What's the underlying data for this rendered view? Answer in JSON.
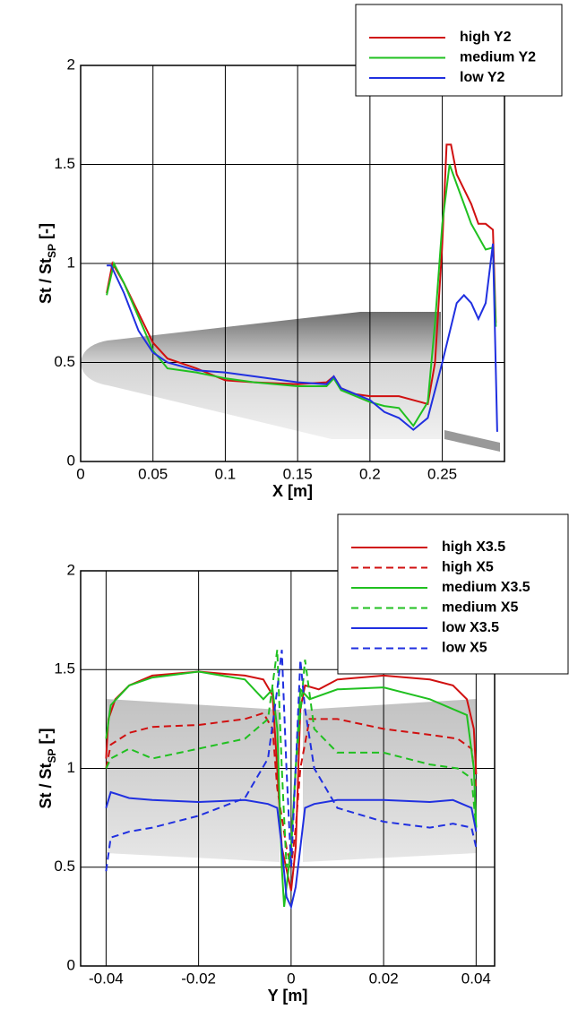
{
  "chart_data": [
    {
      "type": "line",
      "xlabel": "X [m]",
      "ylabel": {
        "main": "St / St",
        "sub": "SP",
        "unit": "[-]"
      },
      "xlim": [
        0,
        0.293
      ],
      "ylim": [
        0,
        2
      ],
      "xticks": [
        0,
        0.05,
        0.1,
        0.15,
        0.2,
        0.25
      ],
      "yticks": [
        0,
        0.5,
        1,
        1.5,
        2
      ],
      "grid": true,
      "legend": "upper right",
      "series": [
        {
          "name": "high Y2",
          "color": "#d01010",
          "dash": false,
          "x": [
            0.018,
            0.022,
            0.03,
            0.04,
            0.05,
            0.06,
            0.08,
            0.1,
            0.12,
            0.15,
            0.17,
            0.175,
            0.18,
            0.19,
            0.2,
            0.22,
            0.235,
            0.24,
            0.245,
            0.25,
            0.253,
            0.256,
            0.26,
            0.27,
            0.275,
            0.28,
            0.285,
            0.287
          ],
          "values": [
            0.85,
            1.0,
            0.9,
            0.75,
            0.6,
            0.52,
            0.47,
            0.41,
            0.4,
            0.39,
            0.4,
            0.43,
            0.37,
            0.34,
            0.33,
            0.33,
            0.3,
            0.29,
            0.5,
            1.1,
            1.6,
            1.6,
            1.45,
            1.3,
            1.2,
            1.2,
            1.17,
            0.7
          ]
        },
        {
          "name": "medium Y2",
          "color": "#20c020",
          "dash": false,
          "x": [
            0.018,
            0.023,
            0.03,
            0.04,
            0.05,
            0.06,
            0.08,
            0.1,
            0.12,
            0.15,
            0.17,
            0.175,
            0.18,
            0.2,
            0.21,
            0.22,
            0.23,
            0.24,
            0.245,
            0.25,
            0.255,
            0.26,
            0.27,
            0.28,
            0.285,
            0.287
          ],
          "values": [
            0.84,
            1.0,
            0.9,
            0.73,
            0.56,
            0.47,
            0.45,
            0.42,
            0.4,
            0.38,
            0.38,
            0.42,
            0.36,
            0.3,
            0.28,
            0.27,
            0.18,
            0.3,
            0.7,
            1.2,
            1.5,
            1.4,
            1.2,
            1.07,
            1.08,
            0.68
          ]
        },
        {
          "name": "low Y2",
          "color": "#2030e0",
          "dash": false,
          "x": [
            0.018,
            0.021,
            0.03,
            0.04,
            0.05,
            0.06,
            0.08,
            0.1,
            0.12,
            0.15,
            0.17,
            0.175,
            0.18,
            0.2,
            0.21,
            0.22,
            0.23,
            0.24,
            0.25,
            0.26,
            0.265,
            0.27,
            0.275,
            0.28,
            0.285,
            0.288
          ],
          "values": [
            0.99,
            0.99,
            0.85,
            0.66,
            0.55,
            0.5,
            0.46,
            0.45,
            0.43,
            0.4,
            0.39,
            0.43,
            0.37,
            0.31,
            0.25,
            0.22,
            0.16,
            0.22,
            0.5,
            0.8,
            0.84,
            0.8,
            0.72,
            0.8,
            1.1,
            0.15
          ]
        }
      ]
    },
    {
      "type": "line",
      "xlabel": "Y [m]",
      "ylabel": {
        "main": "St / St",
        "sub": "SP",
        "unit": "[-]"
      },
      "xlim": [
        -0.0455,
        0.044
      ],
      "ylim": [
        0,
        2
      ],
      "xticks": [
        -0.04,
        -0.02,
        0,
        0.02,
        0.04
      ],
      "yticks": [
        0,
        0.5,
        1,
        1.5,
        2
      ],
      "grid": true,
      "legend": "upper right",
      "series": [
        {
          "name": "high X3.5",
          "color": "#d01010",
          "dash": false,
          "x": [
            -0.04,
            -0.0395,
            -0.038,
            -0.035,
            -0.03,
            -0.02,
            -0.01,
            -0.006,
            -0.004,
            -0.003,
            -0.002,
            0,
            0.001,
            0.002,
            0.003,
            0.006,
            0.01,
            0.02,
            0.03,
            0.035,
            0.038,
            0.0395,
            0.04
          ],
          "values": [
            1.05,
            1.25,
            1.35,
            1.42,
            1.47,
            1.49,
            1.47,
            1.45,
            1.37,
            1.0,
            0.6,
            0.38,
            0.6,
            1.3,
            1.42,
            1.4,
            1.45,
            1.47,
            1.45,
            1.42,
            1.35,
            1.2,
            0.97
          ]
        },
        {
          "name": "high X5",
          "color": "#d01010",
          "dash": true,
          "x": [
            -0.04,
            -0.039,
            -0.035,
            -0.03,
            -0.02,
            -0.01,
            -0.006,
            -0.004,
            -0.003,
            -0.001,
            0,
            0.001,
            0.002,
            0.004,
            0.01,
            0.02,
            0.03,
            0.036,
            0.039,
            0.04
          ],
          "values": [
            1.0,
            1.12,
            1.18,
            1.21,
            1.22,
            1.25,
            1.28,
            1.2,
            0.9,
            0.6,
            0.5,
            0.7,
            1.0,
            1.25,
            1.25,
            1.2,
            1.17,
            1.15,
            1.1,
            0.9
          ]
        },
        {
          "name": "medium X3.5",
          "color": "#20c020",
          "dash": false,
          "x": [
            -0.04,
            -0.039,
            -0.035,
            -0.03,
            -0.02,
            -0.01,
            -0.006,
            -0.004,
            -0.003,
            -0.002,
            -0.0015,
            -0.001,
            0,
            0.001,
            0.002,
            0.004,
            0.01,
            0.02,
            0.03,
            0.035,
            0.038,
            0.0395,
            0.04
          ],
          "values": [
            1.15,
            1.32,
            1.42,
            1.46,
            1.49,
            1.45,
            1.35,
            1.4,
            1.2,
            0.5,
            0.3,
            0.4,
            0.6,
            1.0,
            1.4,
            1.35,
            1.4,
            1.41,
            1.35,
            1.3,
            1.27,
            1.0,
            0.7
          ]
        },
        {
          "name": "medium X5",
          "color": "#20c020",
          "dash": true,
          "x": [
            -0.04,
            -0.039,
            -0.035,
            -0.03,
            -0.02,
            -0.01,
            -0.005,
            -0.003,
            -0.002,
            -0.001,
            0,
            0.001,
            0.003,
            0.005,
            0.01,
            0.02,
            0.03,
            0.036,
            0.039,
            0.04
          ],
          "values": [
            1.0,
            1.05,
            1.1,
            1.05,
            1.1,
            1.15,
            1.25,
            1.6,
            1.0,
            0.5,
            0.6,
            1.0,
            1.55,
            1.2,
            1.08,
            1.08,
            1.02,
            1.0,
            0.95,
            0.7
          ]
        },
        {
          "name": "low X3.5",
          "color": "#2030e0",
          "dash": false,
          "x": [
            -0.04,
            -0.039,
            -0.035,
            -0.03,
            -0.02,
            -0.01,
            -0.005,
            -0.003,
            -0.002,
            -0.001,
            0,
            0.001,
            0.002,
            0.003,
            0.005,
            0.01,
            0.02,
            0.03,
            0.035,
            0.039,
            0.04
          ],
          "values": [
            0.8,
            0.88,
            0.85,
            0.84,
            0.83,
            0.84,
            0.82,
            0.8,
            0.6,
            0.35,
            0.3,
            0.4,
            0.6,
            0.8,
            0.82,
            0.84,
            0.84,
            0.83,
            0.84,
            0.8,
            0.68
          ]
        },
        {
          "name": "low X5",
          "color": "#2030e0",
          "dash": true,
          "x": [
            -0.04,
            -0.039,
            -0.035,
            -0.03,
            -0.02,
            -0.01,
            -0.005,
            -0.003,
            -0.002,
            -0.001,
            0,
            0.001,
            0.002,
            0.003,
            0.005,
            0.01,
            0.02,
            0.03,
            0.035,
            0.039,
            0.04
          ],
          "values": [
            0.48,
            0.65,
            0.68,
            0.7,
            0.76,
            0.85,
            1.05,
            1.4,
            1.6,
            1.0,
            0.5,
            1.0,
            1.55,
            1.3,
            1.0,
            0.8,
            0.73,
            0.7,
            0.72,
            0.7,
            0.6
          ]
        }
      ]
    }
  ]
}
